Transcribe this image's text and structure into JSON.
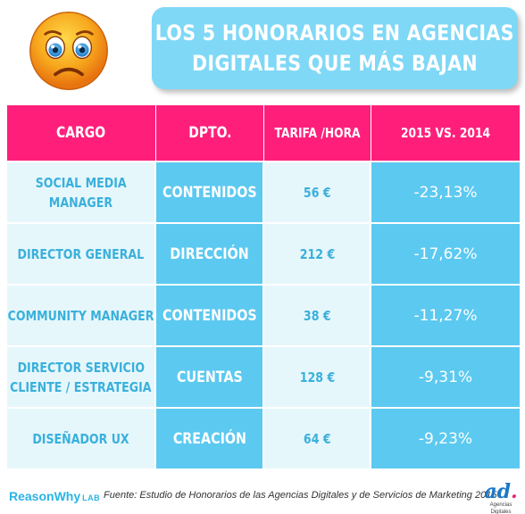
{
  "header": {
    "title_line1": "LOS 5 HONORARIOS EN AGENCIAS",
    "title_line2": "DIGITALES QUE MÁS BAJAN",
    "emoji_icon": "sad-face-icon"
  },
  "table": {
    "columns": [
      "CARGO",
      "DPTO.",
      "TARIFA /HORA",
      "2015 VS. 2014"
    ],
    "rows": [
      {
        "cargo_l1": "SOCIAL MEDIA",
        "cargo_l2": "MANAGER",
        "dpto": "CONTENIDOS",
        "tarifa": "56 €",
        "variacion": "-23,13%"
      },
      {
        "cargo_l1": "DIRECTOR GENERAL",
        "cargo_l2": "",
        "dpto": "DIRECCIÓN",
        "tarifa": "212 €",
        "variacion": "-17,62%"
      },
      {
        "cargo_l1": "COMMUNITY MANAGER",
        "cargo_l2": "",
        "dpto": "CONTENIDOS",
        "tarifa": "38 €",
        "variacion": "-11,27%"
      },
      {
        "cargo_l1": "DIRECTOR SERVICIO",
        "cargo_l2": "CLIENTE / ESTRATEGIA",
        "dpto": "CUENTAS",
        "tarifa": "128 €",
        "variacion": "-9,31%"
      },
      {
        "cargo_l1": "DISEÑADOR UX",
        "cargo_l2": "",
        "dpto": "CREACIÓN",
        "tarifa": "64 €",
        "variacion": "-9,23%"
      }
    ]
  },
  "footer": {
    "logo_left": "ReasonWhy",
    "logo_left_suffix": "LAB",
    "source": "Fuente: Estudio de Honorarios de las Agencias Digitales y de Servicios de Marketing 2015",
    "logo_right": "ad",
    "logo_right_sub": "Agencias Digitales"
  },
  "colors": {
    "header_pink": "#ff1f7b",
    "title_blue": "#7fd8f6",
    "cell_blue": "#5cc9f0",
    "cell_light": "#e6f7fc",
    "text_blue": "#3ab0dc"
  }
}
